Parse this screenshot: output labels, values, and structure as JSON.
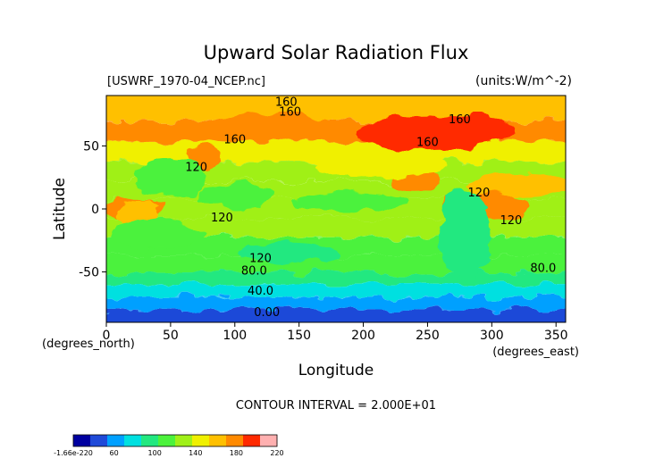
{
  "chart_data": {
    "type": "heatmap",
    "title": "Upward Solar Radiation Flux",
    "source_label": "[USWRF_1970-04_NCEP.nc]",
    "units_label": "(units:W/m^-2)",
    "xlabel": "Longitude",
    "ylabel": "Latitude",
    "x_unit_label": "(degrees_east)",
    "y_unit_label": "(degrees_north)",
    "xlim": [
      0,
      357.5
    ],
    "ylim": [
      -90,
      90
    ],
    "x_ticks": [
      0,
      50,
      100,
      150,
      200,
      250,
      300,
      350
    ],
    "y_ticks": [
      -50,
      0,
      50
    ],
    "contour_interval_text": "CONTOUR INTERVAL = 2.000E+01",
    "contour_labels": [
      "160",
      "160",
      "160",
      "160",
      "160",
      "120",
      "120",
      "120",
      "120",
      "120",
      "80.0",
      "80.0",
      "40.0",
      "0.00"
    ],
    "colorbar_ticks": [
      "-1.66e-220",
      "60",
      "100",
      "140",
      "180",
      "220"
    ],
    "colorscale": [
      "#0000a0",
      "#1f4ad8",
      "#00a0ff",
      "#00e0e0",
      "#22e880",
      "#4cf23c",
      "#a0f018",
      "#f0f000",
      "#ffc000",
      "#ff8a00",
      "#ff2a00",
      "#ffb0b0"
    ],
    "latitude_bands": [
      {
        "lat": 80,
        "value": 150
      },
      {
        "lat": 60,
        "value": 160
      },
      {
        "lat": 45,
        "value": 125
      },
      {
        "lat": 30,
        "value": 115
      },
      {
        "lat": 15,
        "value": 105
      },
      {
        "lat": 0,
        "value": 110
      },
      {
        "lat": -15,
        "value": 100
      },
      {
        "lat": -30,
        "value": 95
      },
      {
        "lat": -45,
        "value": 90
      },
      {
        "lat": -55,
        "value": 70
      },
      {
        "lat": -65,
        "value": 45
      },
      {
        "lat": -75,
        "value": 20
      },
      {
        "lat": -85,
        "value": 5
      }
    ]
  }
}
